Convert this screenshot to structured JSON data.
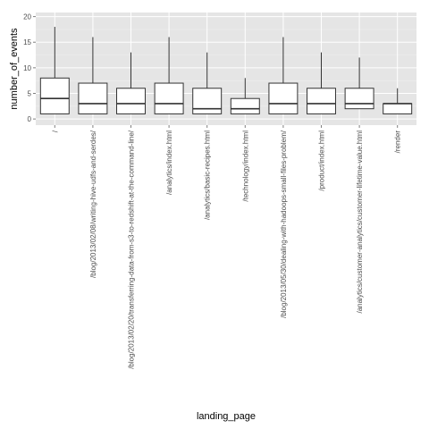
{
  "chart_data": {
    "type": "boxplot",
    "xlabel": "landing_page",
    "ylabel": "number_of_events",
    "ylim": [
      -1.2,
      20.8
    ],
    "y_ticks": [
      0,
      5,
      10,
      15,
      20
    ],
    "grid": true,
    "colors": {
      "panel_background": "#e5e5e5",
      "grid_major": "#ffffff",
      "grid_minor": "#f0f0f0",
      "box_fill": "#ffffff",
      "box_stroke": "#333333"
    },
    "categories": [
      "/",
      "/blog/2013/02/08/writing-hive-udfs-and-serdes/",
      "/blog/2013/02/20/transferring-data-from-s3-to-redshift-at-the-command-line/",
      "/analytics/index.html",
      "/analytics/basic-recipes.html",
      "/technology/index.html",
      "/blog/2013/05/30/dealing-with-hadoops-small-files-problem/",
      "/product/index.html",
      "/analytics/customer-analytics/customer-lifetime-value.html",
      "/render"
    ],
    "boxes": [
      {
        "min": 1,
        "q1": 1,
        "median": 4,
        "q3": 8,
        "max": 18
      },
      {
        "min": 1,
        "q1": 1,
        "median": 3,
        "q3": 7,
        "max": 16
      },
      {
        "min": 1,
        "q1": 1,
        "median": 3,
        "q3": 6,
        "max": 13
      },
      {
        "min": 1,
        "q1": 1,
        "median": 3,
        "q3": 7,
        "max": 16
      },
      {
        "min": 1,
        "q1": 1,
        "median": 2,
        "q3": 6,
        "max": 13
      },
      {
        "min": 1,
        "q1": 1,
        "median": 2,
        "q3": 4,
        "max": 8
      },
      {
        "min": 1,
        "q1": 1,
        "median": 3,
        "q3": 7,
        "max": 16
      },
      {
        "min": 1,
        "q1": 1,
        "median": 3,
        "q3": 6,
        "max": 13
      },
      {
        "min": 2,
        "q1": 2,
        "median": 3,
        "q3": 6,
        "max": 12
      },
      {
        "min": 1,
        "q1": 1,
        "median": 3,
        "q3": 3,
        "max": 6
      }
    ]
  }
}
